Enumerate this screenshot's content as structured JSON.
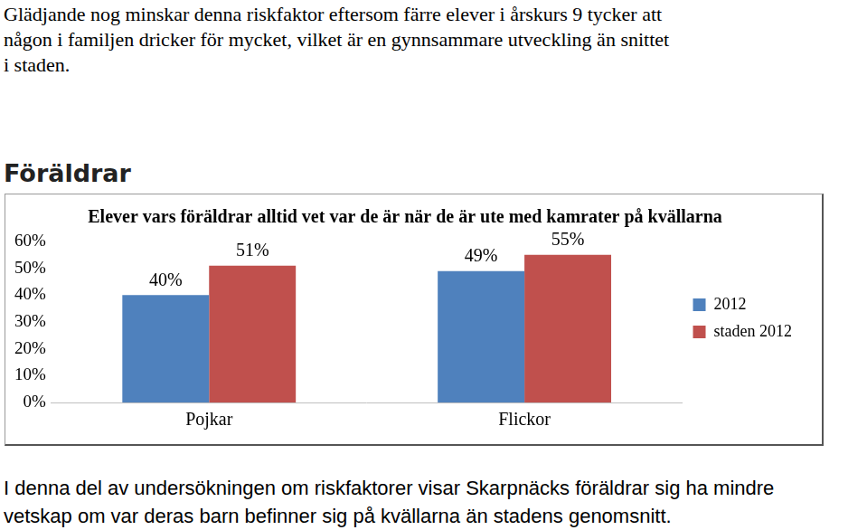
{
  "intro": [
    "Glädjande nog minskar denna riskfaktor eftersom färre elever i årskurs 9 tycker att",
    "någon i familjen dricker för mycket, vilket är en gynnsammare utveckling än snittet",
    "i staden."
  ],
  "heading": "Föräldrar",
  "chart_data": {
    "type": "bar",
    "title": "Elever vars föräldrar alltid vet var de är när de är ute med kamrater på kvällarna",
    "categories": [
      "Pojkar",
      "Flickor"
    ],
    "series": [
      {
        "name": "2012",
        "color": "#4f81bd",
        "values": [
          40,
          49
        ],
        "value_labels": [
          "40%",
          "49%"
        ]
      },
      {
        "name": "staden 2012",
        "color": "#c0504d",
        "values": [
          51,
          55
        ],
        "value_labels": [
          "51%",
          "55%"
        ]
      }
    ],
    "ylim": [
      0,
      60
    ],
    "yticks": [
      {
        "value": 0,
        "label": "0%"
      },
      {
        "value": 10,
        "label": "10%"
      },
      {
        "value": 20,
        "label": "20%"
      },
      {
        "value": 30,
        "label": "30%"
      },
      {
        "value": 40,
        "label": "40%"
      },
      {
        "value": 50,
        "label": "50%"
      },
      {
        "value": 60,
        "label": "60%"
      }
    ],
    "grid": false,
    "legend": "right",
    "data_labels": true
  },
  "outro": [
    "I denna del av undersökningen om riskfaktorer visar Skarpnäcks föräldrar sig ha mindre",
    "vetskap om var deras barn befinner sig på kvällarna än stadens genomsnitt."
  ]
}
